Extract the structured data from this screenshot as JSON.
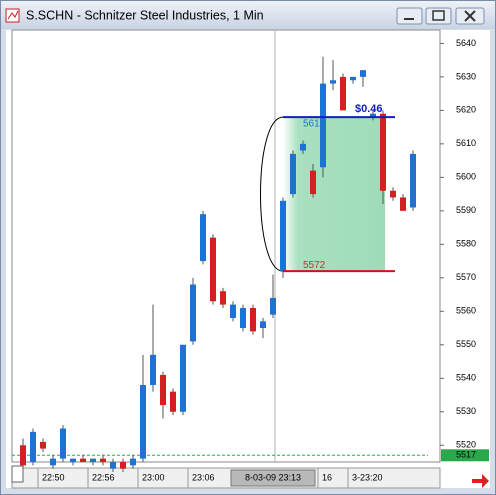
{
  "chart_data": {
    "type": "candlestick",
    "title": "S.SCHN - Schnitzer Steel Industries, 1 Min",
    "categories": [
      null,
      null,
      "22:50",
      null,
      null,
      null,
      null,
      "22:56",
      null,
      null,
      null,
      null,
      "23:00",
      null,
      null,
      null,
      null,
      "23:06",
      null,
      null,
      null,
      null,
      null,
      null,
      null,
      "8-03-09 23:13",
      null,
      null,
      null,
      null,
      "16",
      null,
      null,
      "3-23:20",
      null,
      null,
      null,
      null,
      null,
      null
    ],
    "open": [
      5520,
      5515,
      5521,
      5514,
      5516,
      5515,
      5516,
      5515,
      5516,
      5513,
      5515,
      5514,
      5516,
      5538,
      5541,
      5536,
      5530,
      5551,
      5575,
      5582,
      5566,
      5558,
      5555,
      5561,
      5555,
      5559,
      5572,
      5595,
      5608,
      5602,
      5603,
      5628,
      5630,
      5629,
      5630,
      5618,
      5619,
      5596,
      5594,
      5591
    ],
    "high": [
      5522,
      5525,
      5522,
      5517,
      5526,
      5516,
      5517,
      5516,
      5517,
      5516,
      5516,
      5517,
      5547,
      5562,
      5542,
      5537,
      5550,
      5570,
      5590,
      5583,
      5567,
      5563,
      5562,
      5562,
      5558,
      5571,
      5594,
      5608,
      5611,
      5604,
      5636,
      5635,
      5631,
      5630,
      5632,
      5620,
      5620,
      5597,
      5595,
      5608
    ],
    "low": [
      5513,
      5514,
      5518,
      5513,
      5515,
      5514,
      5515,
      5514,
      5514,
      5512,
      5512,
      5513,
      5515,
      5536,
      5528,
      5529,
      5529,
      5550,
      5574,
      5562,
      5561,
      5557,
      5554,
      5553,
      5552,
      5558,
      5570,
      5594,
      5607,
      5594,
      5600,
      5626,
      5620,
      5628,
      5627,
      5617,
      5592,
      5593,
      5590,
      5590
    ],
    "close": [
      5514,
      5524,
      5519,
      5516,
      5525,
      5516,
      5515,
      5516,
      5515,
      5515,
      5513,
      5516,
      5538,
      5547,
      5532,
      5530,
      5550,
      5568,
      5589,
      5563,
      5562,
      5562,
      5561,
      5554,
      5557,
      5564,
      5593,
      5607,
      5610,
      5595,
      5628,
      5629,
      5620,
      5630,
      5632,
      5619,
      5596,
      5594,
      5590,
      5607
    ],
    "up_color": "#1e73d2",
    "down_color": "#d42020",
    "ylim": [
      5515,
      5644
    ],
    "yticks": [
      5520,
      5530,
      5540,
      5550,
      5560,
      5570,
      5580,
      5590,
      5600,
      5610,
      5620,
      5630,
      5640
    ],
    "measure": {
      "top": 5618,
      "bottom": 5572,
      "change_label": "$0.46"
    },
    "last": 5517,
    "last_color": "#2aa84a"
  }
}
